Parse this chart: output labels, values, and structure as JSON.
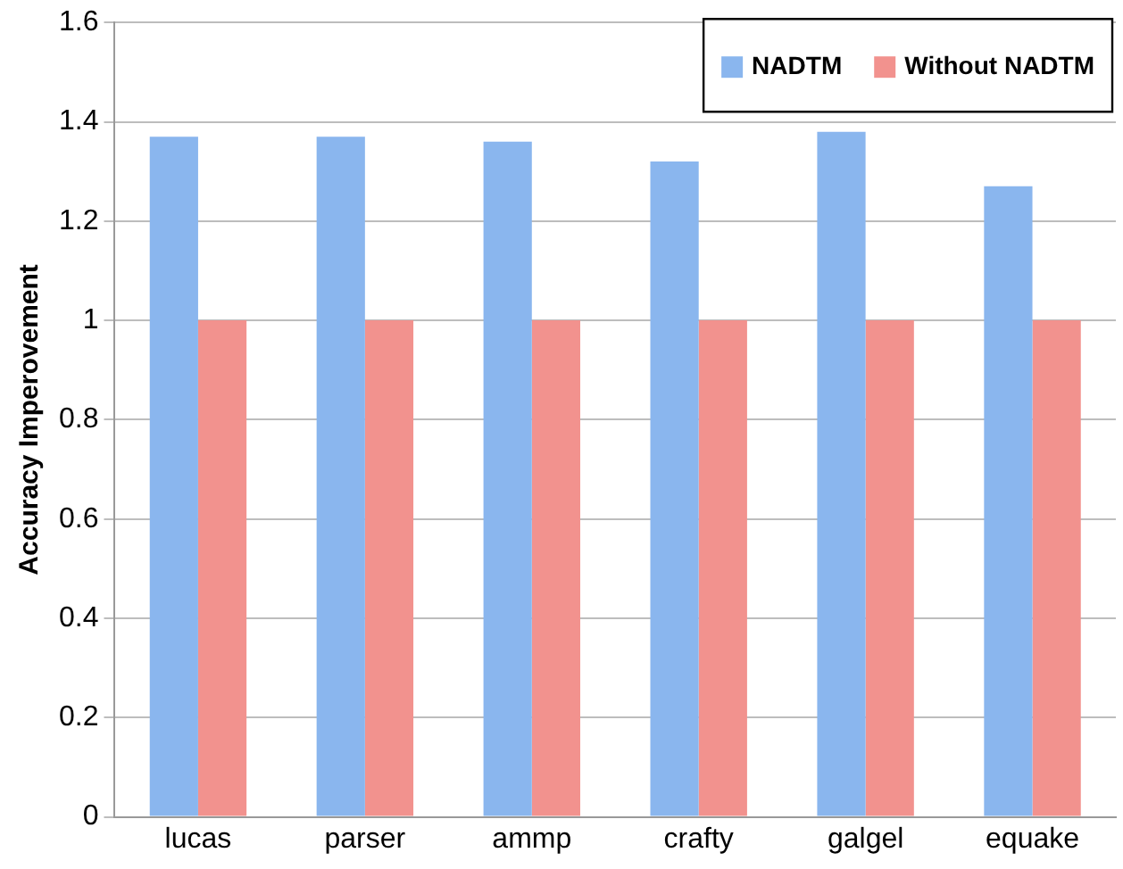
{
  "chart_data": {
    "type": "bar",
    "ylabel": "Accuracy Imperovement",
    "categories": [
      "lucas",
      "parser",
      "ammp",
      "crafty",
      "galgel",
      "equake"
    ],
    "series": [
      {
        "name": "NADTM",
        "color": "#8ab6ee",
        "values": [
          1.37,
          1.37,
          1.36,
          1.32,
          1.38,
          1.27
        ]
      },
      {
        "name": "Without NADTM",
        "color": "#f2928e",
        "values": [
          1,
          1,
          1,
          1,
          1,
          1
        ]
      }
    ],
    "ylim": [
      0,
      1.6
    ],
    "yticks": [
      0,
      0.2,
      0.4,
      0.6,
      0.8,
      1,
      1.2,
      1.4,
      1.6
    ],
    "grid": "y",
    "legend": "top right"
  }
}
